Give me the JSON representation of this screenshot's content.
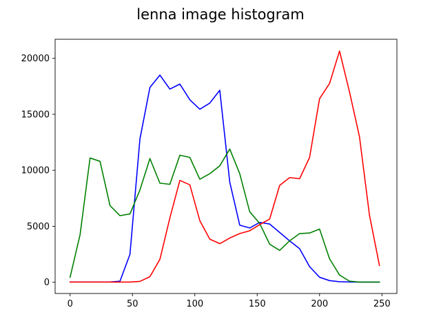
{
  "chart_data": {
    "type": "line",
    "title": "lenna image histogram",
    "xlabel": "",
    "ylabel": "",
    "xlim": [
      -12,
      262
    ],
    "ylim": [
      -1000,
      21700
    ],
    "xticks": [
      0,
      50,
      100,
      150,
      200,
      250
    ],
    "yticks": [
      0,
      5000,
      10000,
      15000,
      20000
    ],
    "grid": false,
    "legend": "none",
    "x": [
      0,
      8,
      16,
      24,
      32,
      40,
      48,
      56,
      64,
      72,
      80,
      88,
      96,
      104,
      112,
      120,
      128,
      136,
      144,
      152,
      160,
      168,
      176,
      184,
      192,
      200,
      208,
      216,
      224,
      232,
      240,
      248
    ],
    "series": [
      {
        "color": "#0000ff",
        "values": [
          30,
          30,
          30,
          30,
          30,
          100,
          2500,
          12800,
          17400,
          18500,
          17250,
          17700,
          16300,
          15450,
          16000,
          17150,
          8950,
          5100,
          4850,
          5350,
          5200,
          4450,
          3700,
          3000,
          1400,
          450,
          150,
          50,
          30,
          20,
          20,
          20
        ]
      },
      {
        "color": "#008000",
        "values": [
          450,
          4250,
          11100,
          10800,
          6850,
          5950,
          6100,
          8250,
          11050,
          8850,
          8750,
          11350,
          11150,
          9200,
          9700,
          10400,
          11900,
          9700,
          6300,
          5250,
          3400,
          2850,
          3700,
          4350,
          4400,
          4750,
          2100,
          650,
          100,
          20,
          20,
          20
        ]
      },
      {
        "color": "#ff0000",
        "values": [
          20,
          20,
          20,
          20,
          20,
          20,
          20,
          80,
          500,
          2050,
          5750,
          9100,
          8700,
          5500,
          3850,
          3450,
          3950,
          4350,
          4600,
          5150,
          5650,
          8650,
          9350,
          9250,
          11150,
          16400,
          17750,
          20650,
          17000,
          13000,
          6000,
          1500
        ]
      }
    ]
  }
}
